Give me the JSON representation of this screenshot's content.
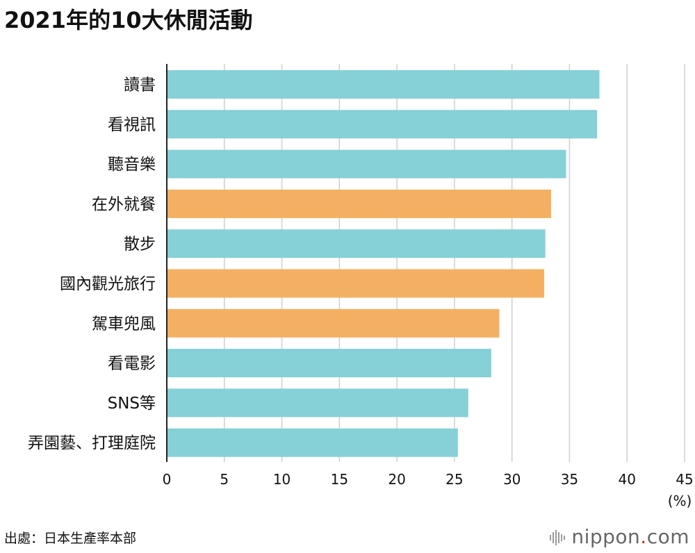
{
  "title": "2021年的10大休閒活動",
  "source": "出處：日本生產率本部",
  "brand": {
    "name": "nippon",
    "dot": ".",
    "suffix": "com"
  },
  "colors": {
    "blue": "#86d0d8",
    "orange": "#f4b062",
    "grid": "#cfcfcf",
    "axis": "#222222"
  },
  "chart_data": {
    "type": "bar",
    "orientation": "horizontal",
    "categories": [
      "讀書",
      "看視訊",
      "聽音樂",
      "在外就餐",
      "散步",
      "國內觀光旅行",
      "駕車兜風",
      "看電影",
      "SNS等",
      "弄園藝、打理庭院"
    ],
    "values": [
      37.6,
      37.4,
      34.7,
      33.4,
      32.9,
      32.8,
      28.9,
      28.2,
      26.2,
      25.3
    ],
    "highlight": [
      false,
      false,
      false,
      true,
      false,
      true,
      true,
      false,
      false,
      false
    ],
    "xlim": [
      0,
      45
    ],
    "xticks": [
      0,
      5,
      10,
      15,
      20,
      25,
      30,
      35,
      40,
      45
    ],
    "unit": "(%)",
    "grid": true
  }
}
